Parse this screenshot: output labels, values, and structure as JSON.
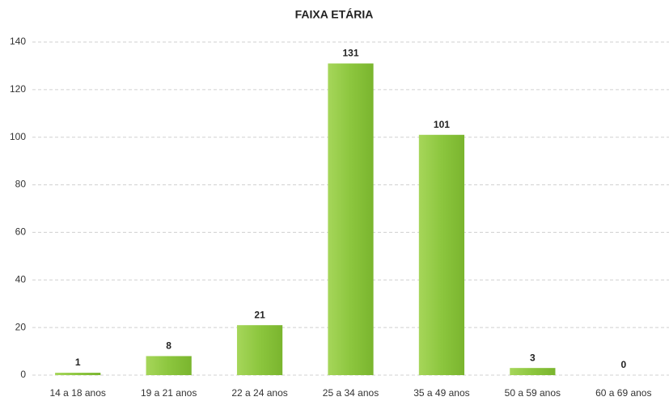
{
  "chart_data": {
    "type": "bar",
    "title": "FAIXA ETÁRIA",
    "categories": [
      "14 a 18 anos",
      "19 a 21 anos",
      "22 a 24 anos",
      "25 a 34 anos",
      "35 a 49 anos",
      "50 a 59 anos",
      "60 a 69 anos"
    ],
    "values": [
      1,
      8,
      21,
      131,
      101,
      3,
      0
    ],
    "color": "#8cc63e",
    "ylim": [
      0,
      140
    ],
    "yticks": [
      0,
      20,
      40,
      60,
      80,
      100,
      120,
      140
    ],
    "grid": true
  }
}
